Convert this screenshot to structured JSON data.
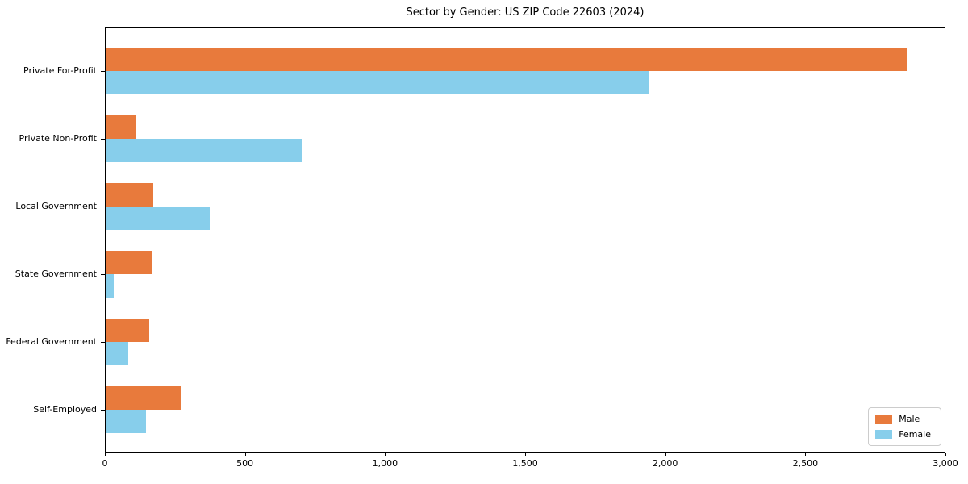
{
  "chart_data": {
    "type": "bar",
    "orientation": "horizontal",
    "title": "Sector by Gender: US ZIP Code 22603 (2024)",
    "xlabel": "",
    "ylabel": "",
    "grid": false,
    "legend_position": "lower right",
    "categories": [
      "Private For-Profit",
      "Private Non-Profit",
      "Local Government",
      "State Government",
      "Federal Government",
      "Self-Employed"
    ],
    "series": [
      {
        "name": "Male",
        "color": "#e87a3c",
        "values": [
          2860,
          110,
          170,
          165,
          155,
          270
        ]
      },
      {
        "name": "Female",
        "color": "#87ceeb",
        "values": [
          1940,
          700,
          370,
          30,
          80,
          145
        ]
      }
    ],
    "xlim": [
      0,
      3000
    ],
    "xticks": {
      "values": [
        0,
        500,
        1000,
        1500,
        2000,
        2500,
        3000
      ],
      "labels": [
        "0",
        "500",
        "1,000",
        "1,500",
        "2,000",
        "2,500",
        "3,000"
      ]
    }
  }
}
